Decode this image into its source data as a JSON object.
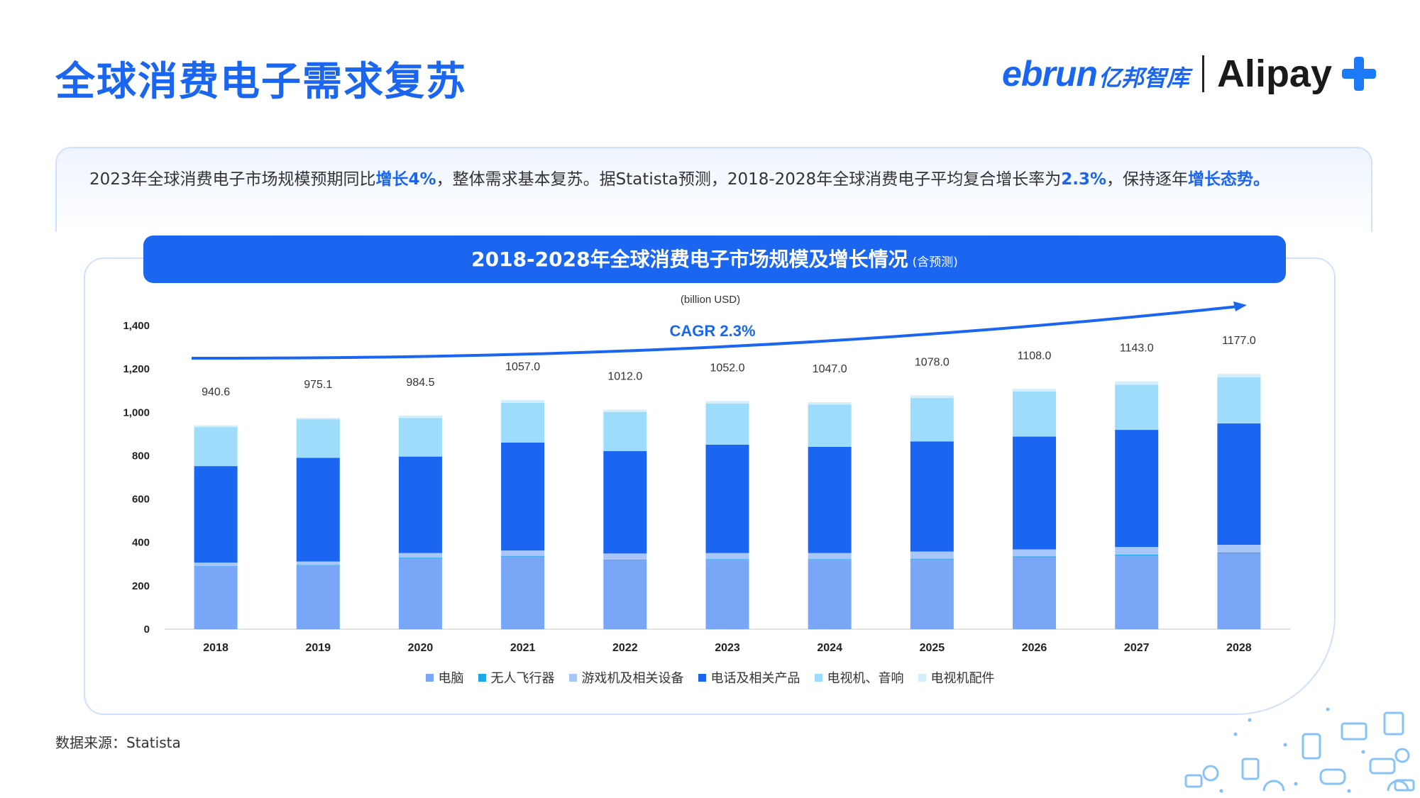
{
  "header": {
    "title": "全球消费电子需求复苏",
    "logo_ebrun": "ebrun",
    "logo_ebrun_cn": "亿邦智库",
    "logo_alipay": "Alipay"
  },
  "summary": {
    "part1": "2023年全球消费电子市场规模预期同比",
    "hl1": "增长4%",
    "part2": "，整体需求基本复苏。据Statista预测，2018-2028年全球消费电子平均复合增长率为",
    "hl2": "2.3%",
    "part3": "，保持逐年",
    "hl3": "增长态势。"
  },
  "chart_banner": {
    "title": "2018-2028年全球消费电子市场规模及增长情况",
    "subtitle": "(含预测)"
  },
  "source": "数据来源：Statista",
  "colors": {
    "brand": "#1a66f0",
    "computer": "#7aa6f7",
    "drone": "#1fa8e8",
    "console": "#a9c6f8",
    "phone": "#1a66f0",
    "tv_audio": "#9ddcfb",
    "tv_accessories": "#d4eefc"
  },
  "chart_data": {
    "type": "bar",
    "stacked": true,
    "unit_label": "(billion USD)",
    "categories": [
      "2018",
      "2019",
      "2020",
      "2021",
      "2022",
      "2023",
      "2024",
      "2025",
      "2026",
      "2027",
      "2028"
    ],
    "series": [
      {
        "name": "电脑",
        "color": "#7aa6f7",
        "values": [
          290,
          295,
          328,
          335,
          318,
          320,
          320,
          322,
          332,
          340,
          350
        ]
      },
      {
        "name": "无人飞行器",
        "color": "#1fa8e8",
        "values": [
          2,
          2,
          3,
          3,
          3,
          3,
          3,
          3,
          4,
          4,
          4
        ]
      },
      {
        "name": "游戏机及相关设备",
        "color": "#a9c6f8",
        "values": [
          15,
          15,
          20,
          25,
          28,
          28,
          28,
          33,
          32,
          35,
          35
        ]
      },
      {
        "name": "电话及相关产品",
        "color": "#1a66f0",
        "values": [
          445,
          478,
          445,
          498,
          472,
          500,
          490,
          508,
          520,
          540,
          560
        ]
      },
      {
        "name": "电视机、音响",
        "color": "#9ddcfb",
        "values": [
          180,
          178,
          178,
          183,
          180,
          190,
          195,
          200,
          208,
          208,
          212
        ]
      },
      {
        "name": "电视机配件",
        "color": "#d4eefc",
        "values": [
          8.6,
          7.1,
          10.5,
          13,
          11,
          11,
          11,
          12,
          12,
          16,
          16
        ]
      }
    ],
    "totals": [
      "940.6",
      "975.1",
      "984.5",
      "1057.0",
      "1012.0",
      "1052.0",
      "1047.0",
      "1078.0",
      "1108.0",
      "1143.0",
      "1177.0"
    ],
    "ylim": [
      0,
      1400
    ],
    "yticks": [
      "0",
      "200",
      "400",
      "600",
      "800",
      "1,000",
      "1,200",
      "1,400"
    ],
    "annotation": "CAGR 2.3%",
    "legend_position": "bottom",
    "grid": false
  }
}
